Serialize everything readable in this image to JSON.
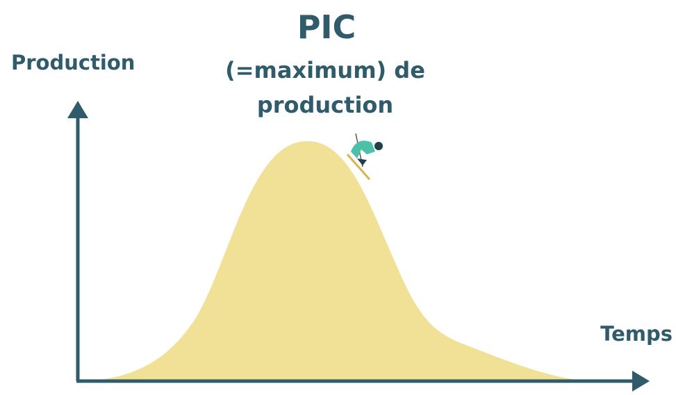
{
  "title": {
    "heading": "PIC",
    "line2": "(=maximum) de",
    "line3": "production"
  },
  "axes": {
    "y_label": "Production",
    "x_label": "Temps"
  }
}
